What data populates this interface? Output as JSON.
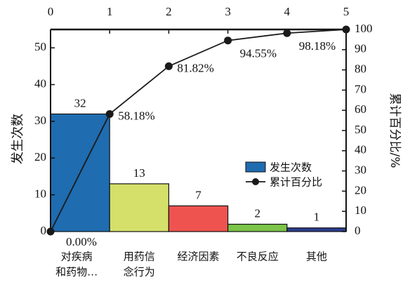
{
  "chart_data": {
    "type": "pareto",
    "categories": [
      [
        "对疾病",
        "和药物…"
      ],
      [
        "用药信",
        "念行为"
      ],
      [
        "经济因素"
      ],
      [
        "不良反应"
      ],
      [
        "其他"
      ]
    ],
    "series": [
      {
        "name": "发生次数",
        "type": "bar",
        "color": "#1f6cb0",
        "colors": [
          "#1f6cb0",
          "#d5e06b",
          "#ef5350",
          "#7cc44a",
          "#2b3d8e"
        ],
        "values": [
          32,
          13,
          7,
          2,
          1
        ]
      },
      {
        "name": "累计百分比",
        "type": "line",
        "axis": "y2",
        "color": "#1a1a1a",
        "x": [
          0,
          1,
          2,
          3,
          4,
          5
        ],
        "values": [
          0,
          58.18,
          81.82,
          94.55,
          98.18,
          100
        ],
        "value_labels": [
          "0.00%",
          "58.18%",
          "81.82%",
          "94.55%",
          "98.18%",
          null
        ]
      }
    ],
    "ylabel": "发生次数",
    "y2label": "累计百分比/%",
    "xlim": [
      0,
      5
    ],
    "xticks": [
      0,
      1,
      2,
      3,
      4,
      5
    ],
    "ylim": [
      0,
      55
    ],
    "yticks": [
      0,
      10,
      20,
      30,
      40,
      50
    ],
    "y2lim": [
      0,
      100
    ],
    "y2ticks": [
      0,
      10,
      20,
      30,
      40,
      50,
      60,
      70,
      80,
      90,
      100
    ],
    "legend": "center-right"
  }
}
